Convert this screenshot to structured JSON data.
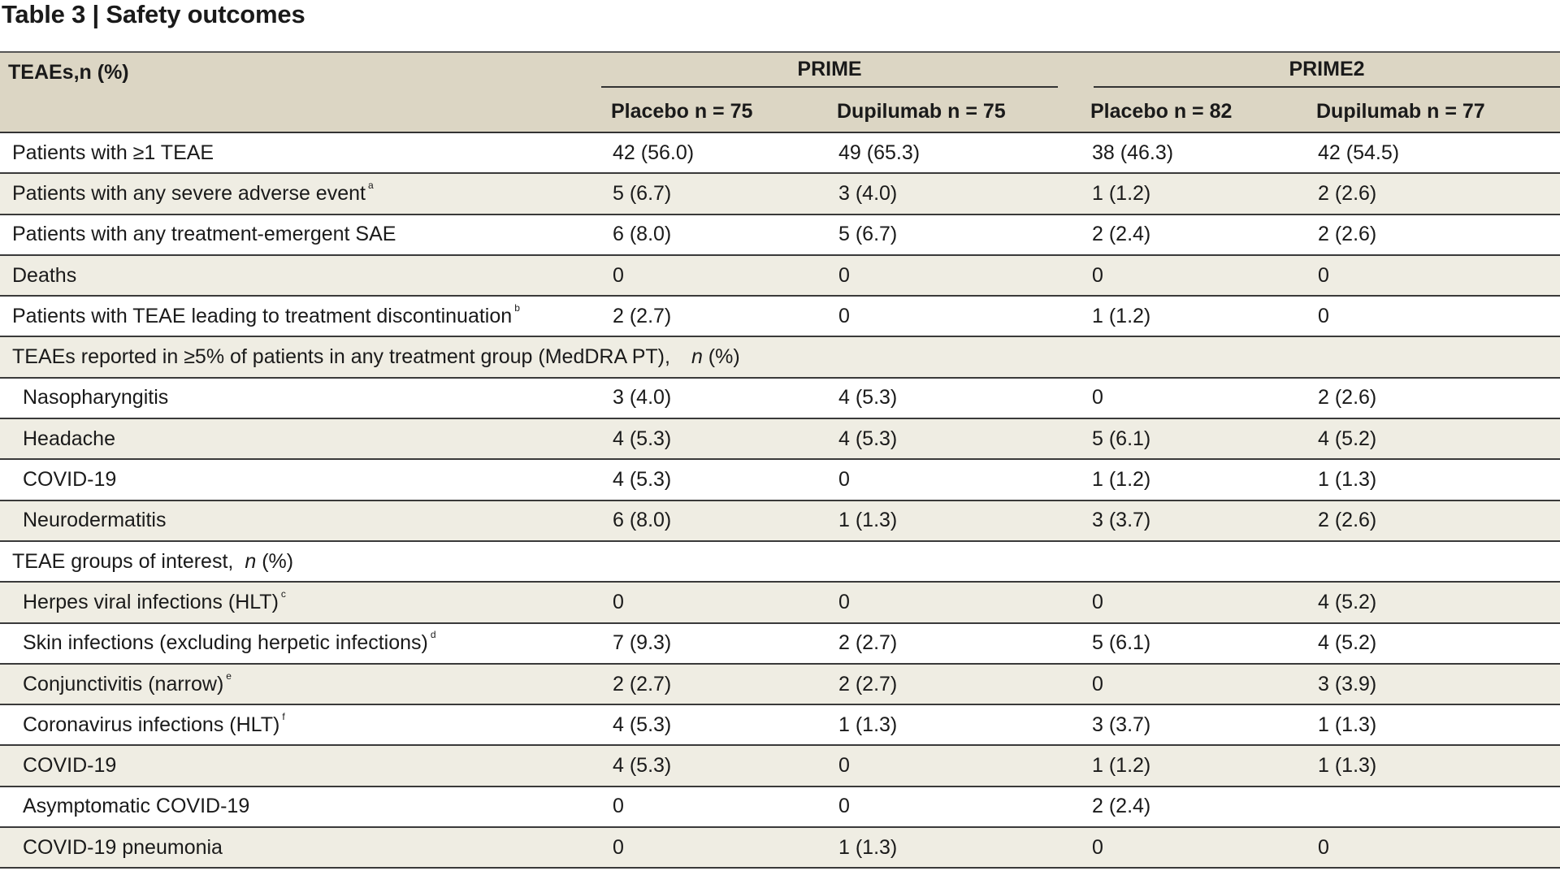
{
  "title": "Table 3 | Safety outcomes",
  "header": {
    "row_label": "TEAEs,n (%)",
    "group1": "PRIME",
    "group2": "PRIME2",
    "columns": [
      "Placebo n = 75",
      "Dupilumab n = 75",
      "Placebo n = 82",
      "Dupilumab n = 77"
    ]
  },
  "rows": [
    {
      "label": "Patients with ≥1 TEAE",
      "sup": "",
      "values": [
        "42 (56.0)",
        "49 (65.3)",
        "38 (46.3)",
        "42 (54.5)"
      ]
    },
    {
      "label": "Patients with any severe adverse event",
      "sup": "a",
      "values": [
        "5 (6.7)",
        "3 (4.0)",
        "1 (1.2)",
        "2 (2.6)"
      ]
    },
    {
      "label": "Patients with any treatment-emergent SAE",
      "sup": "",
      "values": [
        "6 (8.0)",
        "5 (6.7)",
        "2 (2.4)",
        "2 (2.6)"
      ]
    },
    {
      "label": "Deaths",
      "sup": "",
      "values": [
        "0",
        "0",
        "0",
        "0"
      ]
    },
    {
      "label": "Patients with TEAE leading to treatment discontinuation",
      "sup": "b",
      "values": [
        "2 (2.7)",
        "0",
        "1 (1.2)",
        "0"
      ]
    },
    {
      "section": "TEAEs reported in ≥5% of patients in any treatment group (MedDRA PT),",
      "unit_n": "n",
      "unit_rest": " (%)"
    },
    {
      "label": "Nasopharyngitis",
      "sup": "",
      "indent": true,
      "values": [
        "3 (4.0)",
        "4 (5.3)",
        "0",
        "2 (2.6)"
      ]
    },
    {
      "label": "Headache",
      "sup": "",
      "indent": true,
      "values": [
        "4 (5.3)",
        "4 (5.3)",
        "5 (6.1)",
        "4 (5.2)"
      ]
    },
    {
      "label": "COVID-19",
      "sup": "",
      "indent": true,
      "values": [
        "4 (5.3)",
        "0",
        "1 (1.2)",
        "1 (1.3)"
      ]
    },
    {
      "label": "Neurodermatitis",
      "sup": "",
      "indent": true,
      "values": [
        "6 (8.0)",
        "1 (1.3)",
        "3 (3.7)",
        "2 (2.6)"
      ]
    },
    {
      "section": "TEAE groups of interest,",
      "unit_n": "n",
      "unit_rest": " (%)"
    },
    {
      "label": "Herpes viral infections (HLT)",
      "sup": "c",
      "indent": true,
      "values": [
        "0",
        "0",
        "0",
        "4 (5.2)"
      ]
    },
    {
      "label": "Skin infections (excluding herpetic infections)",
      "sup": "d",
      "indent": true,
      "values": [
        "7 (9.3)",
        "2 (2.7)",
        "5 (6.1)",
        "4 (5.2)"
      ]
    },
    {
      "label": "Conjunctivitis (narrow)",
      "sup": "e",
      "indent": true,
      "values": [
        "2 (2.7)",
        "2 (2.7)",
        "0",
        "3 (3.9)"
      ]
    },
    {
      "label": "Coronavirus infections (HLT)",
      "sup": "f",
      "indent": true,
      "values": [
        "4 (5.3)",
        "1 (1.3)",
        "3 (3.7)",
        "1 (1.3)"
      ]
    },
    {
      "label": "COVID-19",
      "sup": "",
      "indent": true,
      "values": [
        "4 (5.3)",
        "0",
        "1 (1.2)",
        "1 (1.3)"
      ]
    },
    {
      "label": "Asymptomatic COVID-19",
      "sup": "",
      "indent": true,
      "values": [
        "0",
        "0",
        "2 (2.4)",
        ""
      ]
    },
    {
      "label": "COVID-19 pneumonia",
      "sup": "",
      "indent": true,
      "values": [
        "0",
        "1 (1.3)",
        "0",
        "0"
      ]
    }
  ]
}
